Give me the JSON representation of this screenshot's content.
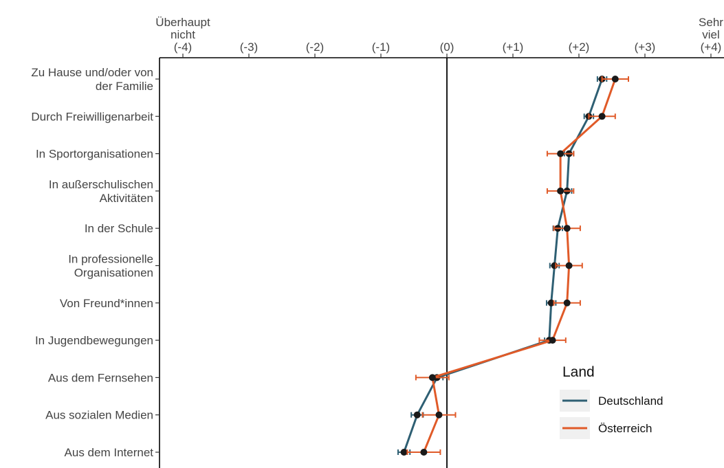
{
  "chart_data": {
    "type": "line",
    "title": "",
    "xlabel": "",
    "ylabel": "",
    "xlim": [
      -4,
      4
    ],
    "x_ticks": [
      {
        "value": -4,
        "label": "(-4)",
        "header": [
          "Überhaupt",
          "nicht"
        ]
      },
      {
        "value": -3,
        "label": "(-3)",
        "header": []
      },
      {
        "value": -2,
        "label": "(-2)",
        "header": []
      },
      {
        "value": -1,
        "label": "(-1)",
        "header": []
      },
      {
        "value": 0,
        "label": "(0)",
        "header": []
      },
      {
        "value": 1,
        "label": "(+1)",
        "header": []
      },
      {
        "value": 2,
        "label": "(+2)",
        "header": []
      },
      {
        "value": 3,
        "label": "(+3)",
        "header": []
      },
      {
        "value": 4,
        "label": "(+4)",
        "header": [
          "Sehr",
          "viel"
        ]
      }
    ],
    "categories": [
      [
        "Zu Hause und/oder von",
        "der Familie"
      ],
      [
        "Durch Freiwilligenarbeit"
      ],
      [
        "In Sportorganisationen"
      ],
      [
        "In außerschulischen",
        "Aktivitäten"
      ],
      [
        "In der Schule"
      ],
      [
        "In professionelle",
        "Organisationen"
      ],
      [
        "Von Freund*innen"
      ],
      [
        "In Jugendbewegungen"
      ],
      [
        "Aus dem Fernsehen"
      ],
      [
        "Aus sozialen Medien"
      ],
      [
        "Aus dem Internet"
      ]
    ],
    "series": [
      {
        "name": "Deutschland",
        "color": "#2e5f73",
        "values": [
          2.35,
          2.15,
          1.85,
          1.82,
          1.68,
          1.63,
          1.58,
          1.55,
          -0.15,
          -0.45,
          -0.65
        ],
        "ci": [
          0.07,
          0.07,
          0.07,
          0.07,
          0.07,
          0.07,
          0.07,
          0.07,
          0.09,
          0.09,
          0.09
        ]
      },
      {
        "name": "Österreich",
        "color": "#e05a28",
        "values": [
          2.55,
          2.35,
          1.72,
          1.72,
          1.82,
          1.85,
          1.82,
          1.6,
          -0.22,
          -0.12,
          -0.35
        ],
        "ci": [
          0.2,
          0.2,
          0.2,
          0.2,
          0.2,
          0.2,
          0.2,
          0.2,
          0.25,
          0.25,
          0.25
        ]
      }
    ],
    "reference_line": 0,
    "grid": false,
    "legend": {
      "title": "Land",
      "position": "bottom-right"
    }
  }
}
